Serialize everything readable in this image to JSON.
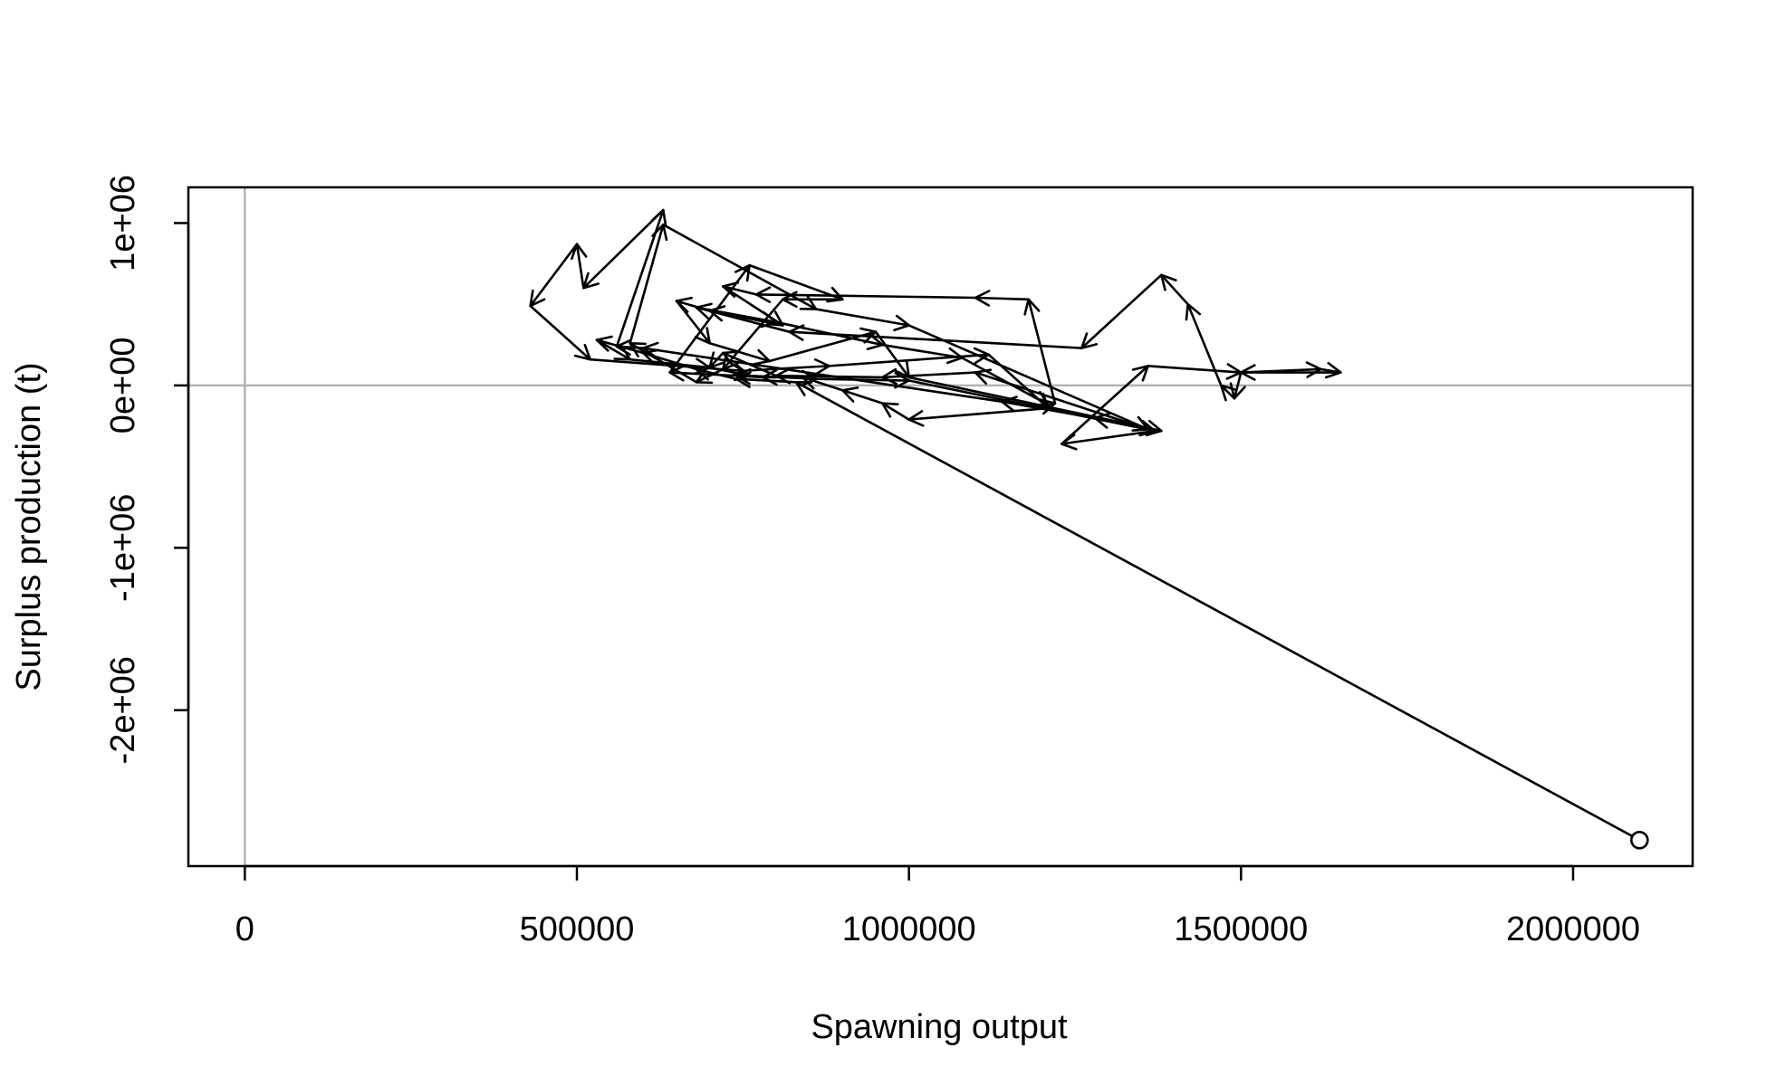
{
  "chart_data": {
    "type": "line",
    "title": "",
    "xlabel": "Spawning output",
    "ylabel": "Surplus production (t)",
    "xlim": [
      -85000,
      2180000
    ],
    "ylim": [
      -2960000,
      1220000
    ],
    "x_ticks": [
      0,
      500000,
      1000000,
      1500000,
      2000000
    ],
    "x_tick_labels": [
      "0",
      "500000",
      "1000000",
      "1500000",
      "2000000"
    ],
    "y_ticks": [
      -2000000,
      -1000000,
      0,
      1000000
    ],
    "y_tick_labels": [
      "-2e+06",
      "-1e+06",
      "0e+00",
      "1e+06"
    ],
    "reference_lines": {
      "vertical_x": 0,
      "horizontal_y": 0
    },
    "grid": false,
    "legend": "none",
    "start_marker": "open-circle",
    "trajectory_color": "#000000",
    "reference_line_color": "#b3b3b3",
    "series": [
      {
        "x": [
          2100000,
          830000,
          740000,
          680000,
          600000,
          530000,
          580000,
          700000,
          760000,
          860000,
          1000000,
          1370000,
          1230000,
          1360000,
          1500000,
          1620000,
          1650000,
          1500000,
          1490000,
          1470000,
          1420000,
          1380000,
          1260000,
          820000,
          680000,
          800000,
          960000,
          1080000,
          1210000,
          1220000,
          1180000,
          1100000,
          770000,
          720000,
          810000,
          700000,
          650000,
          700000,
          790000,
          950000,
          1000000,
          1380000,
          1280000,
          1140000,
          600000,
          560000,
          630000,
          510000,
          500000,
          430000,
          520000,
          750000,
          880000,
          1120000,
          1210000,
          1000000,
          960000,
          900000,
          840000,
          780000,
          740000,
          640000,
          760000,
          900000,
          810000,
          720000,
          680000,
          580000,
          630000,
          860000,
          1000000,
          1360000,
          1100000,
          960000,
          800000,
          720000,
          700000
        ],
        "y": [
          -2800000,
          20000,
          40000,
          100000,
          200000,
          280000,
          160000,
          110000,
          60000,
          40000,
          30000,
          -280000,
          -360000,
          120000,
          80000,
          100000,
          80000,
          80000,
          -80000,
          0,
          500000,
          680000,
          230000,
          330000,
          480000,
          390000,
          250000,
          170000,
          -120000,
          -110000,
          530000,
          540000,
          560000,
          610000,
          370000,
          460000,
          520000,
          260000,
          150000,
          330000,
          50000,
          -280000,
          -200000,
          -100000,
          230000,
          240000,
          1080000,
          600000,
          870000,
          490000,
          160000,
          90000,
          120000,
          190000,
          -140000,
          -210000,
          -110000,
          -30000,
          50000,
          50000,
          60000,
          80000,
          740000,
          530000,
          530000,
          100000,
          20000,
          260000,
          990000,
          470000,
          370000,
          -270000,
          80000,
          50000,
          60000,
          200000,
          110000
        ]
      }
    ]
  }
}
